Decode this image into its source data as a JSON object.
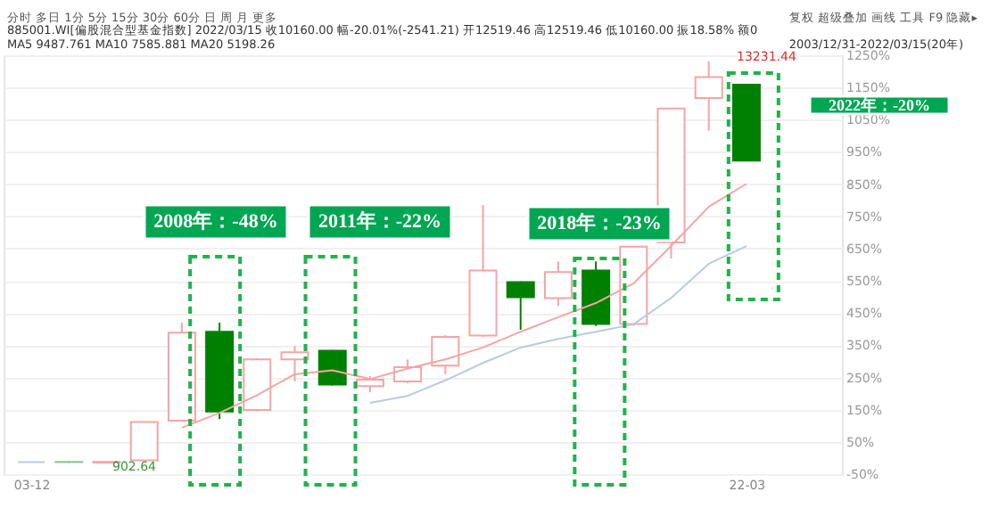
{
  "chart_data": {
    "type": "candlestick",
    "categories": [
      "03-12",
      null,
      null,
      null,
      null,
      null,
      null,
      null,
      null,
      null,
      null,
      null,
      null,
      null,
      null,
      null,
      null,
      null,
      null,
      "22-03"
    ],
    "ohlc": [
      [
        -13,
        -13,
        -13,
        -13
      ],
      [
        -12,
        -10,
        -15,
        -13
      ],
      [
        -14,
        -12,
        -16,
        -12
      ],
      [
        -7,
        112,
        -7,
        112
      ],
      [
        116,
        420,
        116,
        389
      ],
      [
        392,
        420,
        121,
        144
      ],
      [
        149,
        310,
        145,
        306
      ],
      [
        306,
        348,
        238,
        328
      ],
      [
        333,
        335,
        225,
        228
      ],
      [
        223,
        254,
        204,
        243
      ],
      [
        238,
        306,
        232,
        282
      ],
      [
        287,
        381,
        260,
        376
      ],
      [
        380,
        785,
        375,
        582
      ],
      [
        546,
        548,
        398,
        499
      ],
      [
        496,
        610,
        472,
        577
      ],
      [
        582,
        610,
        410,
        416
      ],
      [
        416,
        656,
        410,
        656
      ],
      [
        669,
        1085,
        619,
        1085
      ],
      [
        1117,
        1231,
        1016,
        1182
      ],
      [
        1159,
        1159,
        923,
        923
      ]
    ],
    "colors": [
      "#b8cce4",
      "#90c890",
      "#f4a5a5",
      "#f4a5a5",
      "#f4a5a5",
      "#008000",
      "#f4a5a5",
      "#f4a5a5",
      "#008000",
      "#f4a5a5",
      "#f4a5a5",
      "#f4a5a5",
      "#f4a5a5",
      "#008000",
      "#f4a5a5",
      "#008000",
      "#f4a5a5",
      "#f4a5a5",
      "#f4a5a5",
      "#008000"
    ],
    "series": [
      {
        "type": "line",
        "color": "#f4a5a5",
        "values": [
          null,
          null,
          null,
          null,
          94,
          140,
          195,
          260,
          272,
          245,
          278,
          306,
          343,
          392,
          437,
          481,
          542,
          658,
          780,
          851
        ]
      },
      {
        "type": "line",
        "color": "#b8cce4",
        "values": [
          null,
          null,
          null,
          null,
          null,
          null,
          null,
          null,
          null,
          171,
          193,
          241,
          295,
          343,
          370,
          392,
          415,
          497,
          603,
          658
        ]
      }
    ],
    "ylim": [
      -50,
      1250
    ],
    "yticks": [
      {
        "value": -50,
        "label": "-50%"
      },
      {
        "value": 50,
        "label": "50%"
      },
      {
        "value": 150,
        "label": "150%"
      },
      {
        "value": 250,
        "label": "250%"
      },
      {
        "value": 350,
        "label": "350%"
      },
      {
        "value": 450,
        "label": "450%"
      },
      {
        "value": 550,
        "label": "550%"
      },
      {
        "value": 650,
        "label": "650%"
      },
      {
        "value": 750,
        "label": "750%"
      },
      {
        "value": 850,
        "label": "850%"
      },
      {
        "value": 950,
        "label": "950%"
      },
      {
        "value": 1050,
        "label": "1050%"
      },
      {
        "value": 1150,
        "label": "1150%"
      },
      {
        "value": 1250,
        "label": "1250%"
      }
    ],
    "grid": "y",
    "annotations": [
      "分时   多日   1分   5分   15分   30分   60分   日   周   月   更多",
      "复权    超级叠加    画线    工具    F9    隐藏▸",
      "885001.WI[偏股混合型基金指数]   2022/03/15  收10160.00  幅-20.01%(-2541.21)  开12519.46  高12519.46  低10160.00  振18.58%  额0",
      "MA5 9487.761  MA10 7585.881  MA20 5198.26",
      "2003/12/31-2022/03/15(20年)",
      "2008年：-48%",
      "2011年：-22%",
      "2018年：-23%",
      "2022年：-20%",
      "13231.44",
      "902.64"
    ]
  }
}
